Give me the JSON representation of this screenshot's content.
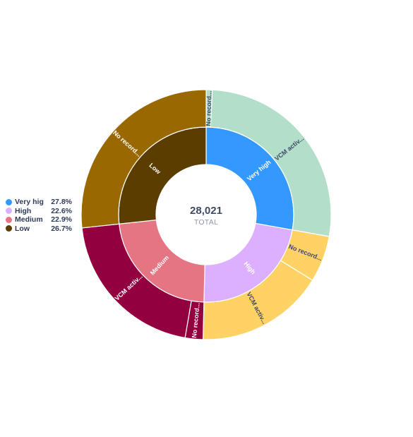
{
  "chart_data": {
    "type": "sunburst",
    "total_value": "28,021",
    "total_label": "TOTAL",
    "categories": [
      {
        "name": "Very high",
        "legend_label": "Very hig",
        "percent_label": "27.8%",
        "share": 0.278,
        "color": "#3399ff",
        "children": [
          {
            "label": "No record...",
            "share": 0.008,
            "color": "#b3dfca"
          },
          {
            "label": "VCM activ...",
            "share": 0.27,
            "color": "#b3dfca"
          }
        ]
      },
      {
        "name": "High",
        "legend_label": "High",
        "percent_label": "22.6%",
        "share": 0.226,
        "color": "#ddb0ff",
        "children": [
          {
            "label": "No record...",
            "share": 0.06,
            "color": "#ffd266"
          },
          {
            "label": "VCM activ...",
            "share": 0.166,
            "color": "#ffd266"
          }
        ]
      },
      {
        "name": "Medium",
        "legend_label": "Medium",
        "percent_label": "22.9%",
        "share": 0.229,
        "color": "#e57583",
        "children": [
          {
            "label": "No record...",
            "share": 0.023,
            "color": "#93003f"
          },
          {
            "label": "VCM activ...",
            "share": 0.206,
            "color": "#93003f"
          }
        ]
      },
      {
        "name": "Low",
        "legend_label": "Low",
        "percent_label": "26.7%",
        "share": 0.267,
        "color": "#5c3d00",
        "children": [
          {
            "label": "No record...",
            "share": 0.267,
            "color": "#9a6800"
          }
        ]
      }
    ]
  }
}
